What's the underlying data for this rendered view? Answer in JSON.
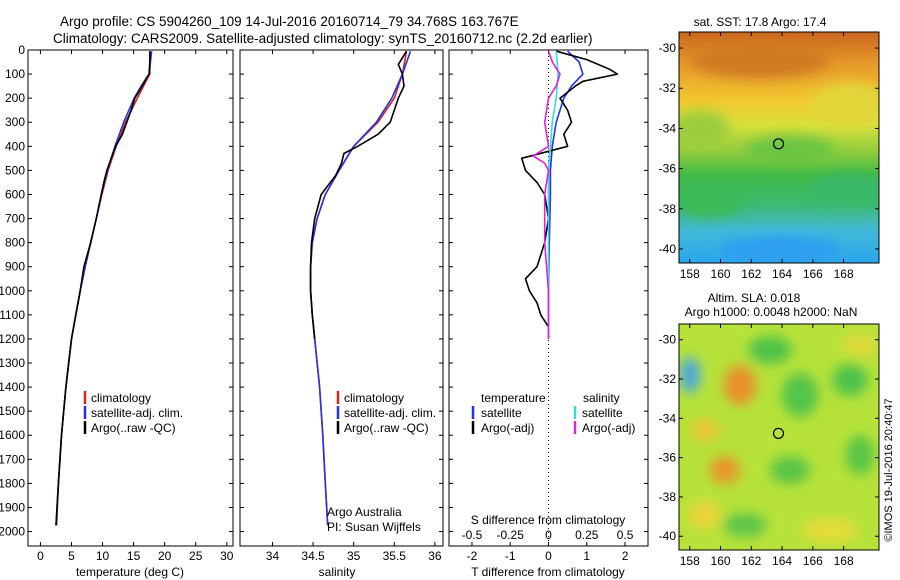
{
  "header": {
    "line1": "Argo profile: CS 5904260_109 14-Jul-2016 20160714_79 34.768S 163.767E",
    "line2": "Climatology: CARS2009. Satellite-adjusted climatology: synTS_20160712.nc (2.2d earlier)"
  },
  "credit": "©IMOS 19-Jul-2016 20:40:47",
  "colors": {
    "climatology": "#dd2222",
    "satellite": "#2233ee",
    "argo": "#000000",
    "sal_satellite": "#33dddd",
    "sal_argo": "#dd22dd"
  },
  "chart_data": [
    {
      "type": "line",
      "xlabel": "temperature (deg C)",
      "xlim": [
        -2,
        31
      ],
      "ylim": [
        0,
        2060
      ],
      "xticks": [
        0,
        5,
        10,
        15,
        20,
        25,
        30
      ],
      "yticks": [
        0,
        100,
        200,
        300,
        400,
        500,
        600,
        700,
        800,
        900,
        1000,
        1100,
        1200,
        1300,
        1400,
        1500,
        1600,
        1700,
        1800,
        1900,
        2000
      ],
      "legend": [
        "climatology",
        "satellite-adj. clim.",
        "Argo(..raw -QC)"
      ],
      "series": [
        {
          "name": "climatology",
          "color": "#dd2222",
          "depth": [
            5,
            100,
            150,
            200,
            300,
            400,
            500,
            600,
            700,
            800,
            900,
            1000,
            1100,
            1200,
            1400,
            1600,
            1800,
            1975
          ],
          "values": [
            17.7,
            17.6,
            16.6,
            15.6,
            13.7,
            12.2,
            10.9,
            9.9,
            9.0,
            8.1,
            7.2,
            6.4,
            5.7,
            5.0,
            4.1,
            3.4,
            2.9,
            2.6
          ]
        },
        {
          "name": "satellite-adj. clim.",
          "color": "#2233ee",
          "depth": [
            5,
            100,
            150,
            200,
            300,
            400,
            500,
            600,
            700,
            800,
            900,
            1000,
            1100,
            1200,
            1400,
            1600,
            1800,
            1975
          ],
          "values": [
            17.9,
            17.5,
            16.2,
            15.1,
            13.4,
            12.0,
            10.8,
            9.8,
            9.0,
            8.1,
            7.2,
            6.4,
            5.7,
            5.0,
            4.1,
            3.4,
            2.9,
            2.5
          ]
        },
        {
          "name": "Argo(..raw -QC)",
          "color": "#000000",
          "depth": [
            5,
            50,
            100,
            120,
            150,
            200,
            250,
            300,
            350,
            400,
            450,
            500,
            550,
            600,
            700,
            800,
            900,
            1000,
            1100,
            1200,
            1400,
            1600,
            1800,
            1975
          ],
          "values": [
            17.6,
            17.6,
            17.5,
            17.0,
            16.4,
            15.2,
            14.6,
            13.9,
            13.2,
            12.1,
            11.4,
            10.7,
            10.2,
            9.8,
            9.0,
            8.1,
            7.0,
            6.4,
            5.7,
            5.0,
            4.1,
            3.4,
            2.9,
            2.5
          ]
        }
      ]
    },
    {
      "type": "line",
      "xlabel": "salinity",
      "xlim": [
        33.6,
        36.1
      ],
      "ylim": [
        0,
        2060
      ],
      "xticks": [
        34,
        34.5,
        35,
        35.5,
        36
      ],
      "legend": [
        "climatology",
        "satellite-adj. clim.",
        "Argo(..raw -QC)"
      ],
      "annotation": [
        "Argo Australia",
        "PI: Susan Wijffels"
      ],
      "series": [
        {
          "name": "climatology",
          "color": "#dd2222",
          "depth": [
            5,
            100,
            200,
            300,
            400,
            500,
            600,
            700,
            800,
            900,
            1000,
            1100,
            1200,
            1400,
            1600,
            1800,
            1975
          ],
          "values": [
            35.65,
            35.6,
            35.5,
            35.3,
            35.0,
            34.82,
            34.65,
            34.55,
            34.49,
            34.47,
            34.47,
            34.49,
            34.52,
            34.58,
            34.62,
            34.65,
            34.68
          ]
        },
        {
          "name": "satellite-adj. clim.",
          "color": "#2233ee",
          "depth": [
            5,
            100,
            200,
            300,
            400,
            500,
            600,
            700,
            800,
            900,
            1000,
            1100,
            1200,
            1400,
            1600,
            1800,
            1975
          ],
          "values": [
            35.7,
            35.6,
            35.47,
            35.28,
            35.0,
            34.82,
            34.65,
            34.55,
            34.49,
            34.47,
            34.47,
            34.49,
            34.52,
            34.58,
            34.62,
            34.65,
            34.68
          ]
        },
        {
          "name": "Argo(..raw -QC)",
          "color": "#000000",
          "depth": [
            5,
            60,
            100,
            150,
            200,
            300,
            350,
            400,
            430,
            470,
            520,
            600,
            700,
            800,
            900,
            1000,
            1100,
            1200
          ],
          "values": [
            35.65,
            35.55,
            35.6,
            35.62,
            35.55,
            35.45,
            35.3,
            35.05,
            34.88,
            34.85,
            34.78,
            34.6,
            34.52,
            34.48,
            34.47,
            34.47,
            34.49,
            34.52
          ]
        }
      ]
    },
    {
      "type": "line",
      "xlabel": "T difference from climatology",
      "x2label": "S difference from climatology",
      "xlim": [
        -2.6,
        2.6
      ],
      "ylim": [
        0,
        2060
      ],
      "xticks": [
        -2,
        -1,
        0,
        1,
        2
      ],
      "x2ticks": [
        "-0.5",
        "-0.25",
        "0",
        "0.25",
        "0.5"
      ],
      "x2values": [
        -2,
        -1,
        0,
        1,
        2
      ],
      "legend_headers": [
        "temperature",
        "salinity"
      ],
      "legend": [
        "satellite",
        "Argo(-adj)",
        "satellite",
        "Argo(-adj)"
      ],
      "series": [
        {
          "name": "T satellite",
          "color": "#2233ee",
          "depth": [
            5,
            50,
            100,
            150,
            200,
            300,
            400,
            500,
            600,
            800,
            1000,
            1200
          ],
          "values": [
            0.5,
            0.8,
            0.9,
            0.6,
            0.4,
            0.2,
            0.1,
            0.05,
            0.05,
            0.02,
            0.0,
            0.0
          ]
        },
        {
          "name": "T Argo(-adj)",
          "color": "#000000",
          "depth": [
            5,
            40,
            80,
            100,
            130,
            150,
            200,
            250,
            300,
            350,
            400,
            450,
            500,
            550,
            600,
            700,
            800,
            900,
            950,
            1000,
            1050,
            1100,
            1150
          ],
          "values": [
            0.2,
            1.0,
            1.6,
            1.8,
            0.9,
            0.7,
            0.3,
            0.5,
            0.6,
            0.4,
            0.5,
            -0.7,
            -0.6,
            -0.3,
            -0.1,
            0.0,
            -0.1,
            -0.3,
            -0.6,
            -0.5,
            -0.3,
            -0.2,
            0.0
          ]
        },
        {
          "name": "S satellite",
          "color": "#33dddd",
          "depth": [
            5,
            100,
            200,
            300,
            400,
            500,
            700,
            900,
            1100,
            1200
          ],
          "values": [
            0.2,
            0.25,
            0.2,
            0.1,
            0.05,
            0.0,
            0.0,
            0.0,
            0.0,
            0.0
          ]
        },
        {
          "name": "S Argo(-adj)",
          "color": "#dd22dd",
          "depth": [
            5,
            50,
            100,
            150,
            200,
            300,
            400,
            440,
            470,
            500,
            600,
            800,
            1000,
            1200
          ],
          "values": [
            0.0,
            0.1,
            0.3,
            0.2,
            0.0,
            -0.1,
            0.0,
            -0.4,
            -0.1,
            0.0,
            -0.1,
            -0.1,
            0.0,
            0.0
          ]
        }
      ]
    },
    {
      "type": "heatmap",
      "title": "sat. SST: 17.8  Argo: 17.4",
      "xlim": [
        157.3,
        170.3
      ],
      "ylim": [
        -40.7,
        -29.2
      ],
      "xticks": [
        158,
        160,
        162,
        164,
        166,
        168
      ],
      "yticks": [
        -30,
        -32,
        -34,
        -36,
        -38,
        -40
      ],
      "marker": {
        "lon": 163.767,
        "lat": -34.768
      }
    },
    {
      "type": "heatmap",
      "title_line1": "Altim. SLA: 0.018",
      "title_line2": "Argo h1000: 0.0048 h2000: NaN",
      "xlim": [
        157.3,
        170.3
      ],
      "ylim": [
        -40.7,
        -29.2
      ],
      "xticks": [
        158,
        160,
        162,
        164,
        166,
        168
      ],
      "yticks": [
        -30,
        -32,
        -34,
        -36,
        -38,
        -40
      ],
      "marker": {
        "lon": 163.767,
        "lat": -34.768
      }
    }
  ]
}
